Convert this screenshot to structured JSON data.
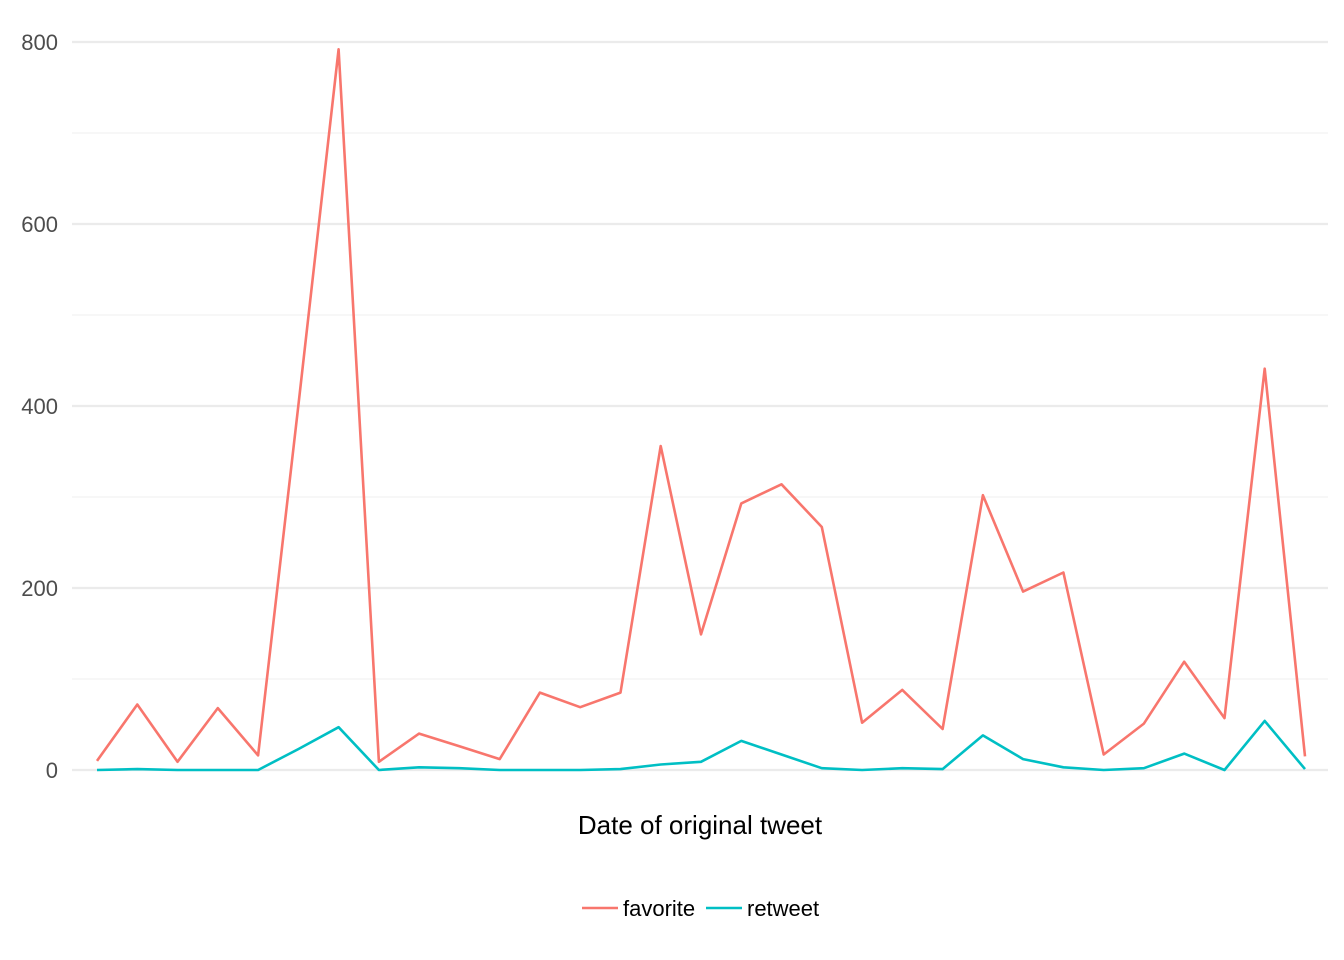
{
  "chart_data": {
    "type": "line",
    "title": "",
    "xlabel": "Date of original tweet",
    "ylabel": "",
    "ylim": [
      0,
      800
    ],
    "y_ticks": [
      "0",
      "200",
      "400",
      "600",
      "800"
    ],
    "y_tick_values": [
      0,
      200,
      400,
      600,
      800
    ],
    "y_minor_values": [
      100,
      300,
      500,
      700
    ],
    "grid": true,
    "x_tick_labels_shown": false,
    "legend_position": "bottom",
    "x": [
      1,
      2,
      3,
      4,
      5,
      6,
      7,
      8,
      9,
      10,
      11,
      12,
      13,
      14,
      15,
      16,
      17,
      18,
      19,
      20,
      21,
      22,
      23,
      24,
      25,
      26,
      27,
      28,
      29,
      30,
      31
    ],
    "series": [
      {
        "name": "favorite",
        "color": "#F8766D",
        "values": [
          10,
          72,
          9,
          68,
          16,
          400,
          792,
          9,
          40,
          26,
          12,
          85,
          69,
          85,
          356,
          149,
          293,
          314,
          267,
          52,
          88,
          45,
          302,
          196,
          217,
          17,
          51,
          119,
          57,
          441,
          15
        ]
      },
      {
        "name": "retweet",
        "color": "#00BFC4",
        "values": [
          0,
          1,
          0,
          0,
          0,
          23,
          47,
          0,
          3,
          2,
          0,
          0,
          0,
          1,
          6,
          9,
          32,
          17,
          2,
          0,
          2,
          1,
          38,
          12,
          3,
          0,
          2,
          18,
          0,
          54,
          1
        ]
      }
    ]
  }
}
